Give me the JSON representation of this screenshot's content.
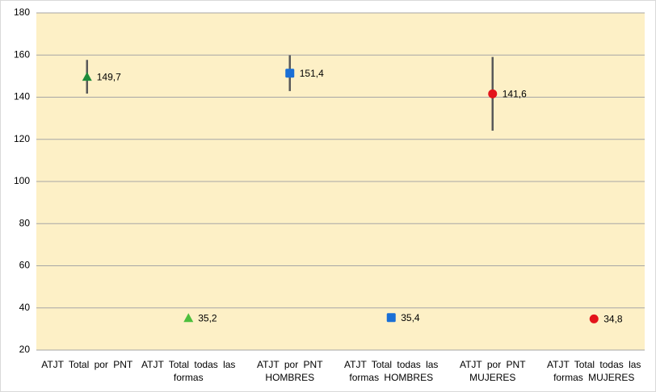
{
  "chart_data": {
    "type": "errorpoint",
    "categories": [
      "ATJT Total por PNT",
      "ATJT Total todas las formas",
      "ATJT por PNT HOMBRES",
      "ATJT Total todas las formas HOMBRES",
      "ATJT por PNT MUJERES",
      "ATJT Total todas las formas MUJERES"
    ],
    "values": [
      149.7,
      35.2,
      151.4,
      35.4,
      141.6,
      34.8
    ],
    "value_labels": [
      "149,7",
      "35,2",
      "151,4",
      "35,4",
      "141,6",
      "34,8"
    ],
    "errors": [
      8,
      null,
      8.5,
      null,
      17.5,
      null
    ],
    "colors": [
      "#1e8c3a",
      "#4cbf3c",
      "#1a6fd6",
      "#1a6fd6",
      "#e3141b",
      "#e3141b"
    ],
    "markers": [
      "triangle",
      "triangle",
      "square",
      "square",
      "circle",
      "circle"
    ],
    "error_color": "#595959",
    "ylim": [
      20,
      180
    ],
    "yticks": [
      20,
      40,
      60,
      80,
      100,
      120,
      140,
      160,
      180
    ],
    "grid": true,
    "background": "#fdf0c6"
  }
}
